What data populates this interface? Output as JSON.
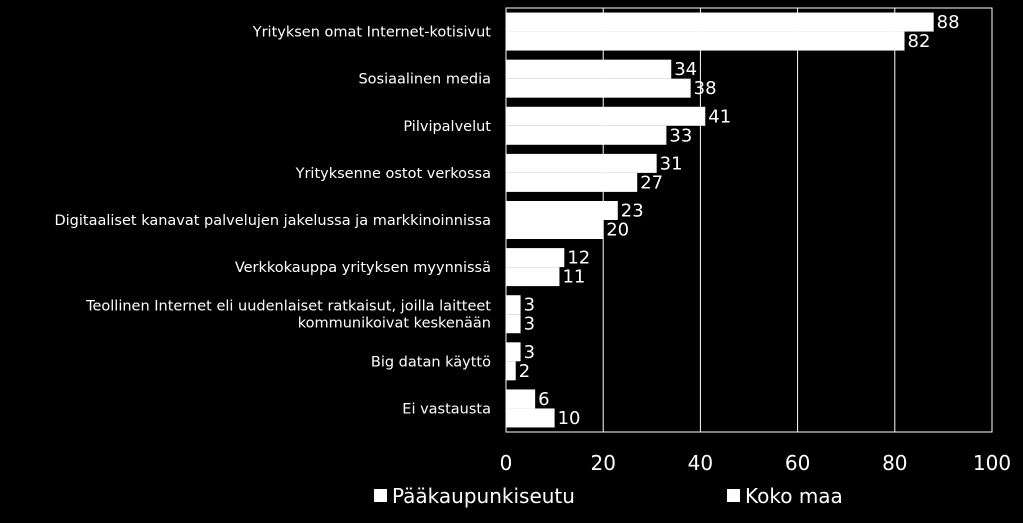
{
  "chart_data": {
    "type": "bar",
    "orientation": "horizontal",
    "categories": [
      [
        "Yrityksen omat Internet-kotisivut"
      ],
      [
        "Sosiaalinen media"
      ],
      [
        "Pilvipalvelut"
      ],
      [
        "Yrityksenne ostot verkossa"
      ],
      [
        "Digitaaliset kanavat palvelujen jakelussa ja markkinoinnissa"
      ],
      [
        "Verkkokauppa yrityksen myynnissä"
      ],
      [
        "Teollinen Internet eli uudenlaiset ratkaisut, joilla laitteet",
        "kommunikoivat keskenään"
      ],
      [
        "Big datan käyttö"
      ],
      [
        "Ei vastausta"
      ]
    ],
    "series": [
      {
        "name": "Pääkaupunkiseutu",
        "values": [
          88,
          34,
          41,
          31,
          23,
          12,
          3,
          3,
          6
        ],
        "color": "#ffffff"
      },
      {
        "name": "Koko maa",
        "values": [
          82,
          38,
          33,
          27,
          20,
          11,
          3,
          2,
          10
        ],
        "color": "#ffffff"
      }
    ],
    "xlim": [
      0,
      100
    ],
    "xticks": [
      0,
      20,
      40,
      60,
      80,
      100
    ],
    "grid": true,
    "legend_position": "bottom"
  }
}
